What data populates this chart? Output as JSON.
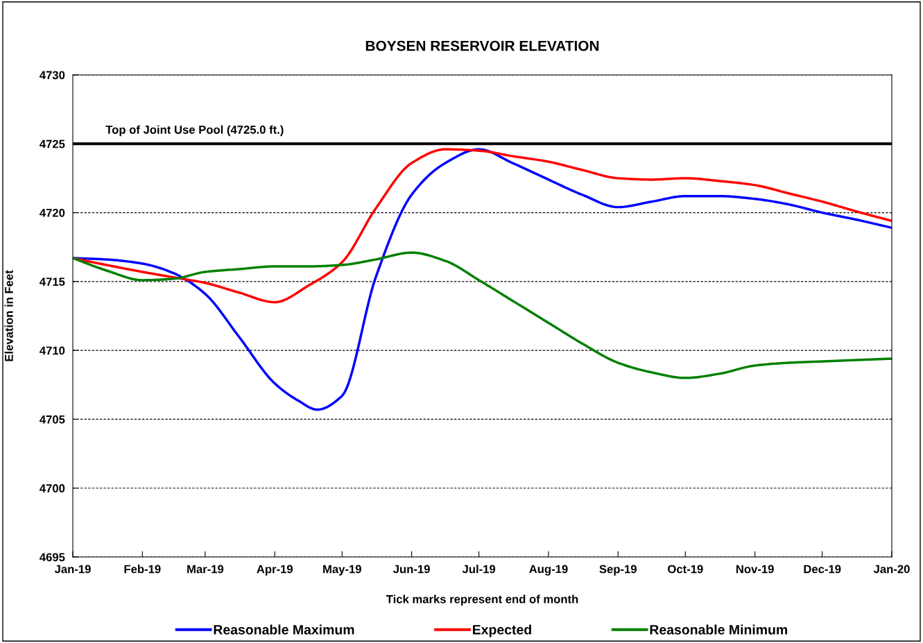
{
  "chart_data": {
    "type": "line",
    "title": "BOYSEN RESERVOIR ELEVATION",
    "xlabel": "Tick marks represent end of month",
    "ylabel": "Elevation in Feet",
    "series": [
      {
        "name": "Reasonable Maximum",
        "color": "#0000ff",
        "x": [
          "2019-01-01",
          "2019-01-16",
          "2019-02-01",
          "2019-02-15",
          "2019-03-01",
          "2019-03-16",
          "2019-04-01",
          "2019-04-11",
          "2019-04-20",
          "2019-05-01",
          "2019-05-16",
          "2019-06-01",
          "2019-06-16",
          "2019-07-01",
          "2019-07-16",
          "2019-08-01",
          "2019-08-16",
          "2019-09-01",
          "2019-09-16",
          "2019-10-01",
          "2019-10-16",
          "2019-11-01",
          "2019-11-16",
          "2019-12-01",
          "2019-12-16",
          "2020-01-01"
        ],
        "values": [
          4716.7,
          4716.6,
          4716.3,
          4715.6,
          4714.1,
          4711.0,
          4707.6,
          4706.4,
          4705.7,
          4706.7,
          4715.3,
          4721.3,
          4723.6,
          4724.6,
          4723.6,
          4722.4,
          4721.3,
          4720.4,
          4720.8,
          4721.2,
          4721.2,
          4721.0,
          4720.6,
          4720.0,
          4719.5,
          4718.9
        ]
      },
      {
        "name": "Expected",
        "color": "#ff0000",
        "x": [
          "2019-01-01",
          "2019-01-16",
          "2019-02-01",
          "2019-02-15",
          "2019-03-01",
          "2019-03-16",
          "2019-04-01",
          "2019-04-16",
          "2019-05-01",
          "2019-05-16",
          "2019-06-01",
          "2019-06-16",
          "2019-07-01",
          "2019-07-16",
          "2019-08-01",
          "2019-08-16",
          "2019-09-01",
          "2019-09-16",
          "2019-10-01",
          "2019-10-16",
          "2019-11-01",
          "2019-11-16",
          "2019-12-01",
          "2019-12-16",
          "2020-01-01"
        ],
        "values": [
          4716.7,
          4716.2,
          4715.7,
          4715.3,
          4714.9,
          4714.2,
          4713.5,
          4714.7,
          4716.4,
          4720.3,
          4723.6,
          4724.6,
          4724.5,
          4724.1,
          4723.7,
          4723.1,
          4722.5,
          4722.4,
          4722.5,
          4722.3,
          4722.0,
          4721.4,
          4720.8,
          4720.1,
          4719.4
        ]
      },
      {
        "name": "Reasonable Minimum",
        "color": "#008000",
        "x": [
          "2019-01-01",
          "2019-01-16",
          "2019-02-01",
          "2019-02-15",
          "2019-03-01",
          "2019-03-16",
          "2019-04-01",
          "2019-04-16",
          "2019-05-01",
          "2019-05-16",
          "2019-06-01",
          "2019-06-16",
          "2019-07-01",
          "2019-07-16",
          "2019-08-01",
          "2019-08-16",
          "2019-09-01",
          "2019-09-16",
          "2019-10-01",
          "2019-10-16",
          "2019-11-01",
          "2019-11-16",
          "2019-12-01",
          "2019-12-16",
          "2020-01-01"
        ],
        "values": [
          4716.7,
          4715.8,
          4715.1,
          4715.2,
          4715.7,
          4715.9,
          4716.1,
          4716.1,
          4716.2,
          4716.6,
          4717.1,
          4716.5,
          4715.1,
          4713.6,
          4712.0,
          4710.5,
          4709.1,
          4708.4,
          4708.0,
          4708.3,
          4708.9,
          4709.1,
          4709.2,
          4709.3,
          4709.4
        ]
      }
    ],
    "xlim": [
      "2019-01-01",
      "2020-01-01"
    ],
    "xticks": [
      {
        "value": "2019-01-01",
        "label": "Jan-19"
      },
      {
        "value": "2019-02-01",
        "label": "Feb-19"
      },
      {
        "value": "2019-03-01",
        "label": "Mar-19"
      },
      {
        "value": "2019-04-01",
        "label": "Apr-19"
      },
      {
        "value": "2019-05-01",
        "label": "May-19"
      },
      {
        "value": "2019-06-01",
        "label": "Jun-19"
      },
      {
        "value": "2019-07-01",
        "label": "Jul-19"
      },
      {
        "value": "2019-08-01",
        "label": "Aug-19"
      },
      {
        "value": "2019-09-01",
        "label": "Sep-19"
      },
      {
        "value": "2019-10-01",
        "label": "Oct-19"
      },
      {
        "value": "2019-11-01",
        "label": "Nov-19"
      },
      {
        "value": "2019-12-01",
        "label": "Dec-19"
      },
      {
        "value": "2020-01-01",
        "label": "Jan-20"
      }
    ],
    "ylim": [
      4695,
      4730
    ],
    "yticks": [
      4695,
      4700,
      4705,
      4710,
      4715,
      4720,
      4725,
      4730
    ],
    "ref_lines": [
      {
        "axis": "y",
        "value": 4725,
        "label": "Top of Joint Use Pool (4725.0 ft.)",
        "color": "#000000",
        "line_style": "solid"
      }
    ],
    "grid": "y",
    "legend": "bottom",
    "marker": "none",
    "line_style": "solid"
  }
}
